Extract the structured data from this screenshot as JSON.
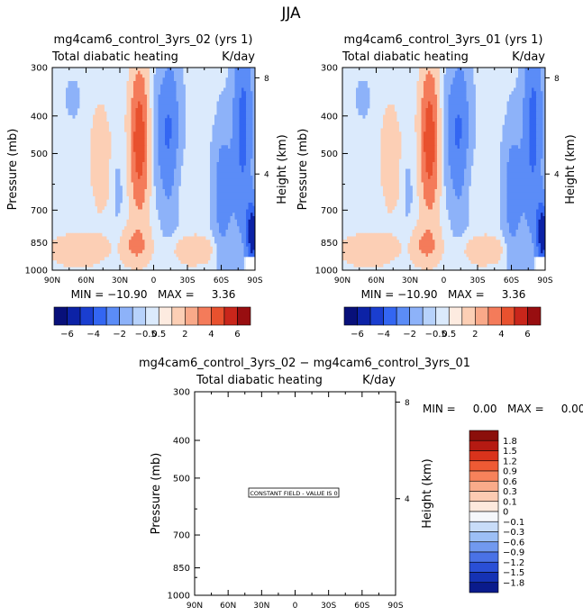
{
  "page": {
    "title": "JJA"
  },
  "colors": {
    "top_bar": [
      "#08107a",
      "#0c22a6",
      "#1a3ed0",
      "#3366f2",
      "#5b8cf7",
      "#8db2f9",
      "#b7d2fb",
      "#dbeafc",
      "#fdebe0",
      "#fccfb5",
      "#f9a989",
      "#f47b5a",
      "#e8512e",
      "#c9261b",
      "#980e10"
    ],
    "diff_bar": [
      "#8b0f0b",
      "#b51a12",
      "#d9331c",
      "#ee5a34",
      "#f7825b",
      "#f9ab8a",
      "#fccbb2",
      "#fde9dd",
      "#f5f7fb",
      "#c8dcf8",
      "#9cbff5",
      "#7199ef",
      "#4a72e6",
      "#2a4fd6",
      "#1532b4",
      "#0a1b8c"
    ]
  },
  "panels": [
    {
      "id": "left",
      "title": "mg4cam6_control_3yrs_02 (yrs 1)",
      "variable": "Total diabatic heating",
      "units": "K/day",
      "ylabel": "Pressure (mb)",
      "y2label": "Height (km)",
      "minmax": "MIN = −10.90   MAX =     3.36"
    },
    {
      "id": "right",
      "title": "mg4cam6_control_3yrs_01 (yrs 1)",
      "variable": "Total diabatic heating",
      "units": "K/day",
      "ylabel": "Pressure (mb)",
      "y2label": "Height (km)",
      "minmax": "MIN = −10.90   MAX =     3.36"
    }
  ],
  "diff_panel": {
    "title": "mg4cam6_control_3yrs_02 − mg4cam6_control_3yrs_01",
    "variable": "Total diabatic heating",
    "units": "K/day",
    "ylabel": "Pressure (mb)",
    "y2label": "Height (km)",
    "minmax": "MIN =     0.00   MAX =     0.00",
    "notice": "CONSTANT FIELD - VALUE IS 0"
  },
  "chart_data": [
    {
      "type": "heatmap",
      "title": "mg4cam6_control_3yrs_02 (yrs 1)",
      "subtitle": "Total diabatic heating",
      "units": "K/day",
      "xlabel": "",
      "ylabel": "Pressure (mb)",
      "y2label": "Height (km)",
      "x_ticks": [
        "90N",
        "60N",
        "30N",
        "0",
        "30S",
        "60S",
        "90S"
      ],
      "y_ticks": [
        "300",
        "400",
        "500",
        "700",
        "850",
        "1000"
      ],
      "y2_ticks": [
        "8",
        "4"
      ],
      "ylim": [
        1000,
        300
      ],
      "y_scale": "log",
      "min": -10.9,
      "max": 3.36,
      "levels": [
        -6,
        -4,
        -2,
        -0.5,
        0.5,
        2,
        4,
        6
      ],
      "colorbar_labels": [
        "−6",
        "−4",
        "−2",
        "−0.5",
        "0.5",
        "2",
        "4",
        "6"
      ]
    },
    {
      "type": "heatmap",
      "title": "mg4cam6_control_3yrs_01 (yrs 1)",
      "subtitle": "Total diabatic heating",
      "units": "K/day",
      "xlabel": "",
      "ylabel": "Pressure (mb)",
      "y2label": "Height (km)",
      "x_ticks": [
        "90N",
        "60N",
        "30N",
        "0",
        "30S",
        "60S",
        "90S"
      ],
      "y_ticks": [
        "300",
        "400",
        "500",
        "700",
        "850",
        "1000"
      ],
      "y2_ticks": [
        "8",
        "4"
      ],
      "ylim": [
        1000,
        300
      ],
      "y_scale": "log",
      "min": -10.9,
      "max": 3.36,
      "levels": [
        -6,
        -4,
        -2,
        -0.5,
        0.5,
        2,
        4,
        6
      ],
      "colorbar_labels": [
        "−6",
        "−4",
        "−2",
        "−0.5",
        "0.5",
        "2",
        "4",
        "6"
      ]
    },
    {
      "type": "heatmap",
      "title": "mg4cam6_control_3yrs_02 − mg4cam6_control_3yrs_01",
      "subtitle": "Total diabatic heating",
      "units": "K/day",
      "xlabel": "",
      "ylabel": "Pressure (mb)",
      "y2label": "Height (km)",
      "x_ticks": [
        "90N",
        "60N",
        "30N",
        "0",
        "30S",
        "60S",
        "90S"
      ],
      "y_ticks": [
        "300",
        "400",
        "500",
        "700",
        "850",
        "1000"
      ],
      "y2_ticks": [
        "8",
        "4"
      ],
      "ylim": [
        1000,
        300
      ],
      "y_scale": "log",
      "min": 0,
      "max": 0,
      "constant_value": 0,
      "colorbar_labels": [
        "1.8",
        "1.5",
        "1.2",
        "0.9",
        "0.6",
        "0.3",
        "0.1",
        "0",
        "−0.1",
        "−0.3",
        "−0.6",
        "−0.9",
        "−1.2",
        "−1.5",
        "−1.8"
      ]
    }
  ]
}
